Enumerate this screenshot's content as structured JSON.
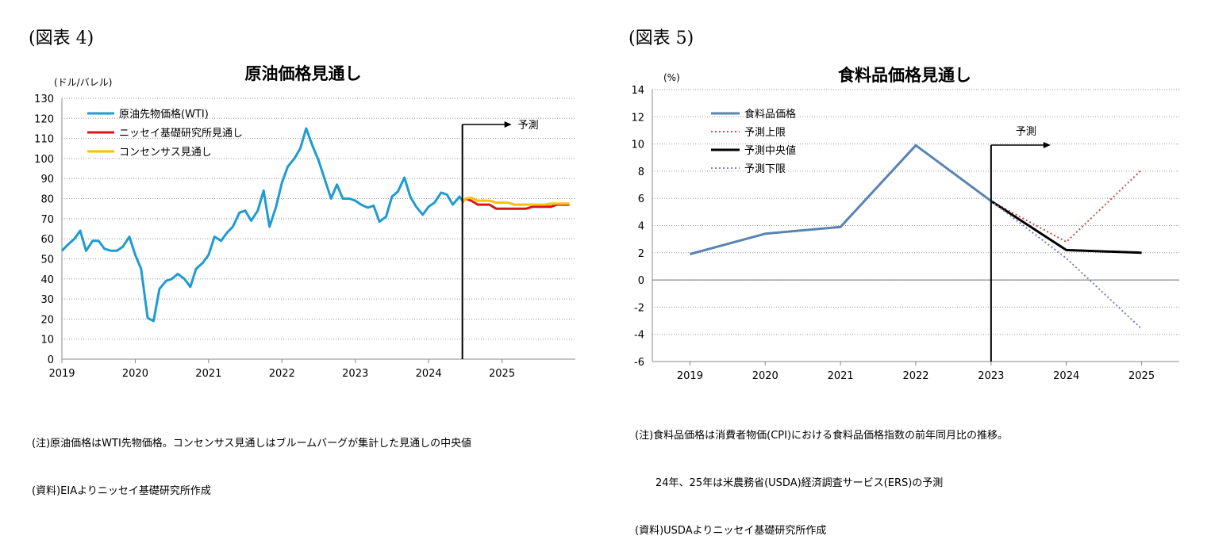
{
  "figures": [
    {
      "label": "(図表 4)",
      "notes": [
        "(注)原油価格はWTI先物価格。コンセンサス見通しはブルームバーグが集計した見通しの中央値",
        "(資料)EIAよりニッセイ基礎研究所作成"
      ]
    },
    {
      "label": "(図表 5)",
      "notes": [
        "(注)食料品価格は消費者物価(CPI)における食料品価格指数の前年同月比の推移。",
        "　　24年、25年は米農務省(USDA)経済調査サービス(ERS)の予測",
        "(資料)USDAよりニッセイ基礎研究所作成"
      ]
    }
  ],
  "chart_data": [
    {
      "type": "line",
      "title": "原油価格見通し",
      "ylabel": "(ドル/バレル)",
      "xlabel": "",
      "ylim": [
        0,
        130
      ],
      "yticks": [
        0,
        10,
        20,
        30,
        40,
        50,
        60,
        70,
        80,
        90,
        100,
        110,
        120,
        130
      ],
      "xlim": [
        2019,
        2026
      ],
      "xticks": [
        "2019",
        "2020",
        "2021",
        "2022",
        "2023",
        "2024",
        "2025"
      ],
      "grid": true,
      "legend": "top-left",
      "forecast_marker": {
        "x": 2024.46,
        "label": "予測"
      },
      "series": [
        {
          "name": "原油先物価格(WTI)",
          "color": "#1f9bd1",
          "dash": "",
          "width": 3,
          "x": [
            2019.0,
            2019.08,
            2019.17,
            2019.25,
            2019.33,
            2019.42,
            2019.5,
            2019.58,
            2019.67,
            2019.75,
            2019.83,
            2019.92,
            2020.0,
            2020.08,
            2020.17,
            2020.25,
            2020.33,
            2020.42,
            2020.5,
            2020.58,
            2020.67,
            2020.75,
            2020.83,
            2020.92,
            2021.0,
            2021.08,
            2021.17,
            2021.25,
            2021.33,
            2021.42,
            2021.5,
            2021.58,
            2021.67,
            2021.75,
            2021.83,
            2021.92,
            2022.0,
            2022.08,
            2022.17,
            2022.25,
            2022.33,
            2022.42,
            2022.5,
            2022.58,
            2022.67,
            2022.75,
            2022.83,
            2022.92,
            2023.0,
            2023.08,
            2023.17,
            2023.25,
            2023.33,
            2023.42,
            2023.5,
            2023.58,
            2023.67,
            2023.75,
            2023.83,
            2023.92,
            2024.0,
            2024.08,
            2024.17,
            2024.25,
            2024.33,
            2024.42,
            2024.46
          ],
          "y": [
            54,
            57,
            60,
            64,
            54,
            59,
            59,
            55,
            54,
            54,
            56,
            61,
            52,
            45,
            20.5,
            19,
            35,
            39,
            40,
            42.5,
            40,
            36,
            45,
            48,
            52,
            61,
            59,
            63,
            66,
            73,
            74,
            69,
            74,
            84,
            66,
            76,
            88,
            96,
            100,
            105,
            115,
            106,
            99,
            90,
            80,
            87,
            80,
            80,
            79,
            77,
            75.5,
            76.5,
            68.5,
            71,
            81,
            83.5,
            90.5,
            81,
            76,
            72,
            76,
            78,
            83,
            82,
            77,
            81,
            79
          ]
        },
        {
          "name": "ニッセイ基礎研究所見通し",
          "color": "#d9141d",
          "dash": "",
          "width": 3,
          "x": [
            2024.46,
            2024.5,
            2024.58,
            2024.67,
            2024.75,
            2024.83,
            2024.92,
            2025.0,
            2025.08,
            2025.17,
            2025.25,
            2025.33,
            2025.42,
            2025.5,
            2025.58,
            2025.67,
            2025.75,
            2025.83,
            2025.92
          ],
          "y": [
            78,
            80,
            79,
            77,
            77,
            77,
            75,
            75,
            75,
            75,
            75,
            75,
            76,
            76,
            76,
            76,
            77,
            77,
            77
          ]
        },
        {
          "name": "コンセンサス見通し",
          "color": "#f7c200",
          "dash": "",
          "width": 3,
          "x": [
            2024.46,
            2024.5,
            2024.58,
            2024.67,
            2024.75,
            2024.83,
            2024.92,
            2025.0,
            2025.08,
            2025.17,
            2025.25,
            2025.33,
            2025.42,
            2025.5,
            2025.58,
            2025.67,
            2025.75,
            2025.83,
            2025.92
          ],
          "y": [
            78,
            80,
            80.5,
            79,
            79,
            79,
            78,
            78,
            78,
            77,
            77,
            77,
            77,
            77,
            77,
            77.5,
            77.5,
            77.5,
            77.5
          ]
        }
      ]
    },
    {
      "type": "line",
      "title": "食料品価格見通し",
      "ylabel": "(%)",
      "xlabel": "",
      "ylim": [
        -6,
        14
      ],
      "yticks": [
        -6,
        -4,
        -2,
        0,
        2,
        4,
        6,
        8,
        10,
        12,
        14
      ],
      "xlim": [
        2018.5,
        2025.5
      ],
      "xticks": [
        "2019",
        "2020",
        "2021",
        "2022",
        "2023",
        "2024",
        "2025"
      ],
      "grid": true,
      "legend": "top-left",
      "forecast_marker": {
        "x": 2023,
        "label": "予測"
      },
      "series": [
        {
          "name": "食料品価格",
          "color": "#5983b0",
          "dash": "",
          "width": 3,
          "x": [
            2019,
            2020,
            2021,
            2022,
            2023
          ],
          "y": [
            1.9,
            3.4,
            3.9,
            9.9,
            5.8
          ]
        },
        {
          "name": "予測上限",
          "color": "#c0504d",
          "dash": "2,3",
          "width": 2,
          "x": [
            2023,
            2024,
            2025
          ],
          "y": [
            5.8,
            2.8,
            8.1
          ]
        },
        {
          "name": "予測中央値",
          "color": "#000000",
          "dash": "",
          "width": 3,
          "x": [
            2023,
            2024,
            2025
          ],
          "y": [
            5.8,
            2.2,
            2.0
          ]
        },
        {
          "name": "予測下限",
          "color": "#7b7fb6",
          "dash": "2,3",
          "width": 2,
          "x": [
            2023,
            2024,
            2025
          ],
          "y": [
            5.8,
            1.6,
            -3.6
          ]
        }
      ]
    }
  ]
}
